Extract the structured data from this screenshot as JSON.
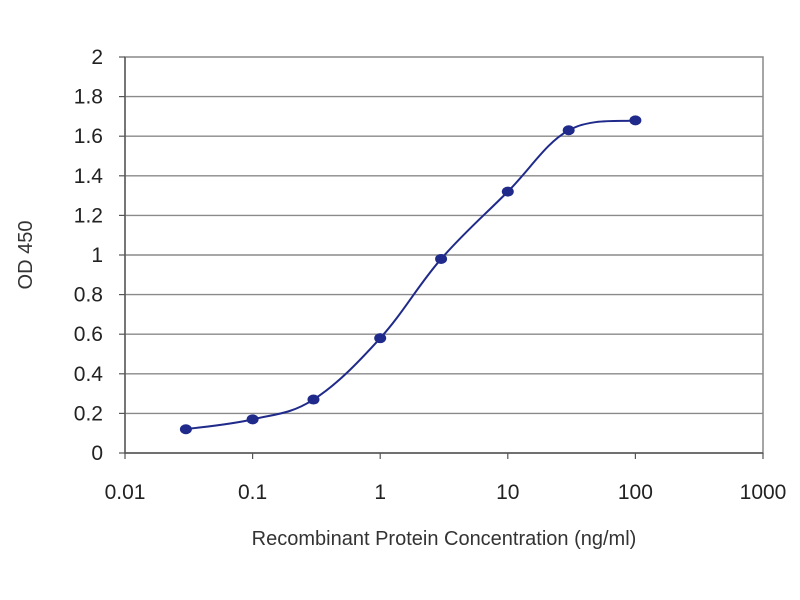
{
  "chart_data": {
    "type": "line",
    "xlabel": "Recombinant Protein Concentration (ng/ml)",
    "ylabel": "OD 450",
    "x_scale": "log",
    "xlim": [
      0.01,
      1000
    ],
    "ylim": [
      0,
      2
    ],
    "x_ticks": [
      "0.01",
      "0.1",
      "1",
      "10",
      "100",
      "1000"
    ],
    "y_ticks": [
      "0",
      "0.2",
      "0.4",
      "0.6",
      "0.8",
      "1",
      "1.2",
      "1.4",
      "1.6",
      "1.8",
      "2"
    ],
    "grid": "horizontal",
    "legend": "none",
    "series": [
      {
        "x": [
          0.03,
          0.1,
          0.3,
          1,
          3,
          10,
          30,
          100
        ],
        "y": [
          0.12,
          0.17,
          0.27,
          0.58,
          0.98,
          1.32,
          1.63,
          1.68
        ],
        "color": "#1f2a8a"
      }
    ]
  }
}
